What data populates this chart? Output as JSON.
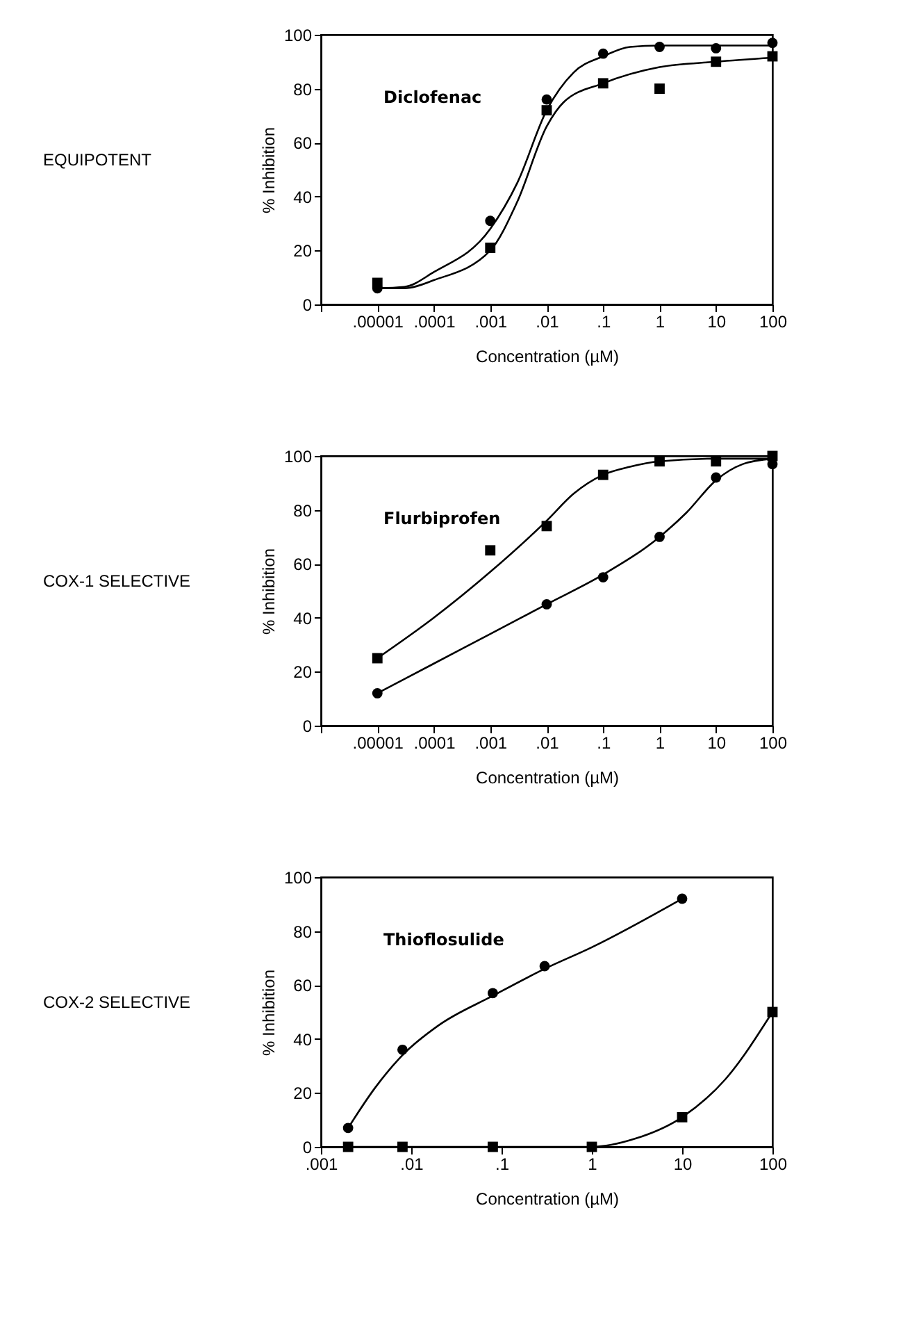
{
  "chart_data": [
    {
      "type": "scatter",
      "xlabel": "Concentration (µM)",
      "ylabel": "% Inhibition",
      "log": "x",
      "xlim": [
        1e-06,
        100
      ],
      "ylim": [
        0,
        100
      ],
      "xticks": [
        {
          "value": 1e-06,
          "label": null
        },
        {
          "value": 1e-05,
          "label": ".00001"
        },
        {
          "value": 0.0001,
          "label": ".0001"
        },
        {
          "value": 0.001,
          "label": ".001"
        },
        {
          "value": 0.01,
          "label": ".01"
        },
        {
          "value": 0.1,
          "label": ".1"
        },
        1,
        10,
        100
      ],
      "yticks": [
        0,
        20,
        40,
        60,
        80,
        100
      ],
      "annotations": [
        "Diclofenac",
        "EQUIPOTENT"
      ],
      "series": [
        {
          "color": "#000000",
          "marker": "circle",
          "x": [
            1e-05,
            0.001,
            0.01,
            0.1,
            1,
            10,
            100
          ],
          "values": [
            6,
            31,
            76,
            93,
            95.5,
            95,
            97
          ]
        },
        {
          "color": "#000000",
          "marker": "square",
          "x": [
            1e-05,
            0.001,
            0.01,
            0.1,
            1,
            10,
            100
          ],
          "values": [
            8,
            21,
            72,
            82,
            80,
            90,
            92
          ]
        },
        {
          "type": "line",
          "color": "#000000",
          "x": [
            1e-05,
            3e-05,
            0.0001,
            0.001,
            0.003,
            0.01,
            0.03,
            0.1,
            0.3,
            1,
            10,
            100
          ],
          "values": [
            6,
            6.5,
            12,
            28,
            45,
            72,
            86,
            92,
            95.5,
            96,
            96,
            96
          ]
        },
        {
          "type": "line",
          "color": "#000000",
          "x": [
            1e-05,
            3e-05,
            0.0001,
            0.001,
            0.003,
            0.01,
            0.02,
            0.1,
            1,
            10,
            100
          ],
          "values": [
            6,
            6,
            9,
            20,
            38,
            66,
            75,
            82,
            88,
            90,
            91.5
          ]
        }
      ]
    },
    {
      "type": "scatter",
      "xlabel": "Concentration (µM)",
      "ylabel": "% Inhibition",
      "log": "x",
      "xlim": [
        1e-06,
        100
      ],
      "ylim": [
        0,
        100
      ],
      "xticks": [
        {
          "value": 1e-06,
          "label": null
        },
        {
          "value": 1e-05,
          "label": ".00001"
        },
        {
          "value": 0.0001,
          "label": ".0001"
        },
        {
          "value": 0.001,
          "label": ".001"
        },
        {
          "value": 0.01,
          "label": ".01"
        },
        {
          "value": 0.1,
          "label": ".1"
        },
        1,
        10,
        100
      ],
      "yticks": [
        0,
        20,
        40,
        60,
        80,
        100
      ],
      "annotations": [
        "Flurbiprofen",
        "COX-1 SELECTIVE"
      ],
      "series": [
        {
          "color": "#000000",
          "marker": "square",
          "x": [
            1e-05,
            0.001,
            0.01,
            0.1,
            1,
            10,
            100
          ],
          "values": [
            25,
            65,
            74,
            93,
            98,
            98,
            100
          ]
        },
        {
          "color": "#000000",
          "marker": "circle",
          "x": [
            1e-05,
            0.01,
            0.1,
            1,
            10,
            100
          ],
          "values": [
            12,
            45,
            55,
            70,
            92,
            97
          ]
        },
        {
          "type": "line",
          "color": "#000000",
          "x": [
            1e-05,
            0.0001,
            0.001,
            0.01,
            0.03,
            0.1,
            0.3,
            1,
            10,
            100
          ],
          "values": [
            25,
            40,
            57,
            76,
            86,
            93,
            96,
            98,
            99,
            99
          ]
        },
        {
          "type": "line",
          "color": "#000000",
          "x": [
            1e-05,
            0.0001,
            0.001,
            0.01,
            0.1,
            1,
            3,
            10,
            30,
            100
          ],
          "values": [
            12,
            23,
            34,
            45,
            56,
            70,
            79,
            91,
            97,
            99
          ]
        }
      ]
    },
    {
      "type": "scatter",
      "xlabel": "Concentration (µM)",
      "ylabel": "% Inhibition",
      "log": "x",
      "xlim": [
        0.001,
        100
      ],
      "ylim": [
        0,
        100
      ],
      "xticks": [
        {
          "value": 0.001,
          "label": ".001"
        },
        {
          "value": 0.01,
          "label": ".01"
        },
        {
          "value": 0.1,
          "label": ".1"
        },
        1,
        10,
        100
      ],
      "yticks": [
        0,
        20,
        40,
        60,
        80,
        100
      ],
      "annotations": [
        "Thioflosulide",
        "COX-2 SELECTIVE"
      ],
      "series": [
        {
          "color": "#000000",
          "marker": "circle",
          "x": [
            0.002,
            0.008,
            0.08,
            0.3,
            10
          ],
          "values": [
            7,
            36,
            57,
            67,
            92
          ]
        },
        {
          "color": "#000000",
          "marker": "square",
          "x": [
            0.002,
            0.008,
            0.08,
            1,
            10,
            100
          ],
          "values": [
            0,
            0,
            0,
            0,
            11,
            50
          ]
        },
        {
          "type": "line",
          "color": "#000000",
          "x": [
            0.002,
            0.004,
            0.008,
            0.02,
            0.08,
            0.3,
            1,
            10
          ],
          "values": [
            7,
            22,
            34,
            45,
            56,
            66,
            74,
            92
          ]
        },
        {
          "type": "line",
          "color": "#000000",
          "x": [
            0.002,
            1,
            3,
            10,
            30,
            100
          ],
          "values": [
            0,
            0,
            3,
            11,
            25,
            50
          ]
        }
      ]
    }
  ]
}
